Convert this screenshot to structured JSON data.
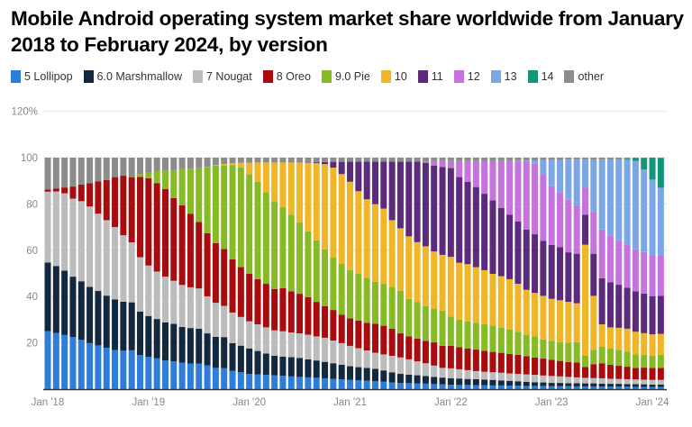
{
  "chart_data": {
    "type": "bar",
    "stacked": true,
    "title": "Mobile Android operating system market share worldwide from January 2018 to February 2024, by version",
    "xlabel": "",
    "ylabel": "",
    "ylim": [
      0,
      120
    ],
    "y_ticks": [
      "0",
      "20",
      "40",
      "60",
      "80",
      "100",
      "120%"
    ],
    "x_tick_labels": [
      "Jan '18",
      "Jan '19",
      "Jan '20",
      "Jan '21",
      "Jan '22",
      "Jan '23",
      "Jan '24"
    ],
    "x_range": [
      "Jan 2018",
      "Feb 2024"
    ],
    "grid": true,
    "legend_position": "top-left",
    "series": [
      {
        "name": "5 Lollipop",
        "color": "#2f7ddb",
        "values": [
          25.1,
          24.3,
          23.4,
          22.5,
          21.3,
          19.9,
          18.9,
          17.9,
          16.9,
          16.6,
          16.8,
          14.7,
          14.0,
          13.3,
          12.4,
          12.0,
          11.4,
          11.1,
          11.0,
          10.3,
          9.2,
          9.1,
          7.9,
          7.3,
          6.6,
          6.4,
          6.2,
          6.0,
          5.8,
          5.5,
          5.3,
          5.1,
          4.9,
          4.7,
          4.4,
          4.2,
          4.0,
          3.8,
          3.6,
          3.4,
          3.2,
          2.9,
          2.7,
          2.6,
          2.5,
          2.4,
          2.2,
          2.1,
          1.9,
          1.8,
          1.8,
          1.7,
          1.7,
          1.6,
          1.6,
          1.5,
          1.5,
          1.4,
          1.4,
          1.4,
          1.3,
          1.3,
          1.3,
          1.2,
          1.2,
          1.2,
          1.1,
          1.1,
          1.1,
          1.1,
          1.0,
          1.0,
          1.0,
          1.0
        ]
      },
      {
        "name": "6.0 Marshmallow",
        "color": "#12283f",
        "values": [
          29.6,
          28.9,
          27.8,
          26.1,
          25.3,
          24.3,
          23.5,
          22.5,
          21.9,
          21.2,
          20.7,
          18.8,
          17.6,
          17.0,
          16.4,
          16.2,
          15.5,
          15.3,
          15.1,
          13.8,
          13.4,
          13.4,
          12.0,
          11.5,
          11.0,
          10.1,
          9.2,
          8.4,
          8.3,
          8.3,
          8.2,
          7.8,
          7.5,
          7.1,
          6.8,
          6.3,
          5.9,
          5.7,
          5.6,
          5.4,
          4.9,
          4.4,
          3.9,
          3.7,
          3.5,
          3.3,
          3.1,
          2.9,
          2.8,
          2.8,
          2.6,
          2.6,
          2.4,
          2.4,
          2.2,
          2.1,
          1.9,
          1.8,
          1.6,
          1.5,
          1.4,
          1.4,
          1.3,
          1.4,
          1.3,
          1.3,
          1.3,
          1.2,
          1.2,
          1.1,
          1.2,
          1.1,
          1.0,
          1.0
        ]
      },
      {
        "name": "7 Nougat",
        "color": "#bcbcbc",
        "values": [
          30.6,
          32.2,
          33.4,
          33.7,
          34.6,
          34.7,
          33.4,
          32.6,
          31.2,
          28.7,
          25.9,
          23.5,
          21.8,
          20.5,
          19.8,
          18.6,
          18.1,
          17.6,
          17.4,
          16.0,
          14.7,
          13.5,
          13.2,
          12.4,
          11.7,
          11.5,
          11.3,
          11.0,
          10.9,
          10.7,
          10.6,
          10.6,
          10.4,
          10.4,
          9.8,
          9.4,
          8.8,
          8.2,
          7.5,
          6.9,
          6.9,
          7.1,
          7.1,
          6.6,
          6.0,
          5.5,
          4.9,
          4.2,
          4.3,
          4.0,
          3.8,
          3.5,
          3.4,
          3.3,
          3.3,
          3.2,
          3.2,
          3.2,
          3.2,
          3.0,
          3.0,
          2.8,
          2.7,
          2.5,
          2.4,
          2.3,
          2.3,
          2.2,
          2.1,
          2.1,
          2.0,
          2.0,
          2.0,
          2.0
        ]
      },
      {
        "name": "8 Oreo",
        "color": "#a80c0e",
        "values": [
          0.9,
          1.3,
          2.5,
          5.2,
          7.2,
          10.0,
          14.0,
          17.3,
          21.6,
          25.7,
          28.2,
          34.7,
          37.7,
          38.2,
          37.9,
          35.7,
          34.4,
          31.8,
          28.7,
          27.3,
          25.8,
          24.5,
          23.0,
          21.5,
          20.5,
          19.5,
          18.8,
          17.9,
          18.6,
          17.8,
          17.1,
          16.2,
          14.9,
          13.6,
          13.2,
          12.3,
          11.9,
          11.9,
          12.0,
          12.6,
          12.4,
          11.7,
          10.4,
          9.9,
          9.8,
          9.7,
          10.0,
          9.5,
          9.7,
          9.5,
          9.4,
          9.3,
          9.1,
          8.8,
          8.6,
          8.4,
          8.2,
          7.8,
          7.5,
          7.3,
          7.0,
          6.7,
          6.4,
          6.4,
          4.7,
          6.0,
          6.5,
          6.0,
          5.7,
          5.4,
          5.0,
          5.2,
          5.2,
          5.2
        ]
      },
      {
        "name": "9.0 Pie",
        "color": "#86bb25",
        "values": [
          0,
          0,
          0,
          0,
          0,
          0,
          0,
          0,
          0,
          0,
          0.2,
          1.3,
          2.4,
          5.2,
          7.9,
          12.1,
          15.6,
          19.4,
          23.3,
          28.6,
          33.4,
          36.0,
          40.7,
          43.0,
          43.1,
          42.1,
          39.6,
          37.9,
          35.0,
          33.1,
          30.9,
          28.5,
          26.6,
          24.6,
          22.6,
          22.0,
          20.8,
          20.2,
          19.4,
          18.1,
          18.1,
          18.1,
          18.4,
          16.2,
          15.9,
          14.9,
          14.6,
          15.2,
          12.6,
          11.9,
          11.7,
          11.6,
          11.4,
          11.3,
          10.8,
          10.5,
          10.0,
          9.3,
          9.1,
          8.3,
          8.2,
          8.0,
          8.3,
          8.7,
          4.8,
          6.2,
          7.1,
          7.1,
          6.9,
          6.6,
          5.8,
          5.6,
          5.2,
          5.6
        ]
      },
      {
        "name": "10",
        "color": "#f0b628",
        "values": [
          0,
          0,
          0,
          0,
          0,
          0,
          0,
          0,
          0,
          0,
          0,
          0,
          0,
          0,
          0,
          0,
          0,
          0,
          0,
          0.1,
          0.4,
          0.8,
          0.8,
          2.1,
          4.9,
          8.3,
          12.8,
          16.7,
          19.3,
          22.5,
          25.8,
          29.6,
          33.3,
          36.8,
          38.9,
          38.7,
          38.2,
          35.7,
          33.9,
          33.5,
          32.5,
          28.8,
          27.0,
          27.0,
          25.8,
          25.9,
          24.7,
          24.1,
          25.9,
          24.6,
          24.7,
          24.0,
          23.4,
          22.4,
          22.3,
          21.8,
          20.7,
          19.4,
          18.8,
          18.8,
          18.1,
          18.2,
          17.7,
          16.9,
          48.0,
          23.3,
          9.7,
          9.1,
          9.5,
          9.8,
          9.8,
          9.3,
          9.3,
          9.1
        ]
      },
      {
        "name": "11",
        "color": "#5b2a7a",
        "values": [
          0,
          0,
          0,
          0,
          0,
          0,
          0,
          0,
          0,
          0,
          0,
          0,
          0,
          0,
          0,
          0,
          0,
          0,
          0,
          0,
          0,
          0,
          0,
          0,
          0,
          0,
          0,
          0,
          0,
          0,
          0,
          0.2,
          0.4,
          0.9,
          2.5,
          5.3,
          8.7,
          12.8,
          16.3,
          18.4,
          20.3,
          25.3,
          28.8,
          32.3,
          34.8,
          36.1,
          37.0,
          38.0,
          38.3,
          37.0,
          35.6,
          34.6,
          33.0,
          31.7,
          29.5,
          27.9,
          27.0,
          26.0,
          25.3,
          23.8,
          23.3,
          22.9,
          21.4,
          21.4,
          13.0,
          18.2,
          19.9,
          19.5,
          18.6,
          17.7,
          17.5,
          17.1,
          16.5,
          16.4
        ]
      },
      {
        "name": "12",
        "color": "#c673dd",
        "values": [
          0,
          0,
          0,
          0,
          0,
          0,
          0,
          0,
          0,
          0,
          0,
          0,
          0,
          0,
          0,
          0,
          0,
          0,
          0,
          0,
          0,
          0,
          0,
          0,
          0,
          0,
          0,
          0,
          0,
          0,
          0,
          0,
          0,
          0,
          0,
          0,
          0,
          0,
          0,
          0,
          0,
          0,
          0,
          0,
          0,
          0.6,
          2.0,
          2.5,
          3.0,
          6.9,
          8.9,
          11.2,
          14.1,
          17.0,
          20.2,
          23.1,
          26.0,
          29.6,
          30.5,
          28.8,
          25.4,
          23.8,
          22.7,
          20.7,
          11.6,
          18.1,
          21.0,
          20.1,
          19.2,
          18.6,
          18.1,
          17.9,
          17.6,
          17.3
        ]
      },
      {
        "name": "13",
        "color": "#7ba7e4",
        "values": [
          0,
          0,
          0,
          0,
          0,
          0,
          0,
          0,
          0,
          0,
          0,
          0,
          0,
          0,
          0,
          0,
          0,
          0,
          0,
          0,
          0,
          0,
          0,
          0,
          0,
          0,
          0,
          0,
          0,
          0,
          0,
          0,
          0,
          0,
          0,
          0,
          0,
          0,
          0,
          0,
          0,
          0,
          0,
          0,
          0,
          0,
          0,
          0,
          0,
          0,
          0,
          0,
          0,
          0,
          0,
          0,
          0.1,
          0.2,
          1.4,
          6.0,
          11.3,
          13.9,
          17.3,
          19.9,
          12.1,
          22.6,
          30.3,
          32.9,
          34.9,
          36.7,
          38.2,
          35.7,
          32.7,
          29.4
        ]
      },
      {
        "name": "14",
        "color": "#12967a",
        "values": [
          0,
          0,
          0,
          0,
          0,
          0,
          0,
          0,
          0,
          0,
          0,
          0,
          0,
          0,
          0,
          0,
          0,
          0,
          0,
          0,
          0,
          0,
          0,
          0,
          0,
          0,
          0,
          0,
          0,
          0,
          0,
          0,
          0,
          0,
          0,
          0,
          0,
          0,
          0,
          0,
          0,
          0,
          0,
          0,
          0,
          0,
          0,
          0,
          0,
          0,
          0,
          0,
          0,
          0,
          0,
          0,
          0,
          0,
          0,
          0,
          0,
          0,
          0,
          0,
          0,
          0,
          0,
          0,
          0,
          0.4,
          1.2,
          5.0,
          9.6,
          12.9
        ]
      },
      {
        "name": "other",
        "color": "#8c8c8c",
        "values": [
          13.8,
          13.3,
          12.9,
          12.5,
          11.6,
          11.1,
          10.2,
          9.7,
          8.4,
          7.8,
          8.2,
          7.0,
          6.5,
          5.8,
          5.6,
          5.4,
          5.0,
          4.8,
          4.5,
          3.9,
          3.1,
          2.7,
          2.4,
          2.2,
          2.2,
          2.1,
          2.1,
          2.1,
          2.1,
          2.1,
          2.1,
          2.0,
          2.0,
          1.9,
          1.8,
          1.8,
          1.7,
          1.7,
          1.7,
          1.7,
          1.7,
          1.7,
          1.7,
          1.7,
          1.7,
          1.6,
          1.5,
          1.5,
          1.5,
          1.5,
          1.5,
          1.5,
          1.5,
          1.5,
          1.5,
          1.5,
          1.4,
          1.3,
          1.2,
          1.1,
          1.0,
          1.0,
          0.9,
          0.9,
          0.9,
          0.8,
          0.8,
          0.8,
          0.8,
          0.5,
          0.2,
          0.2,
          0.1,
          0.1
        ]
      }
    ]
  }
}
